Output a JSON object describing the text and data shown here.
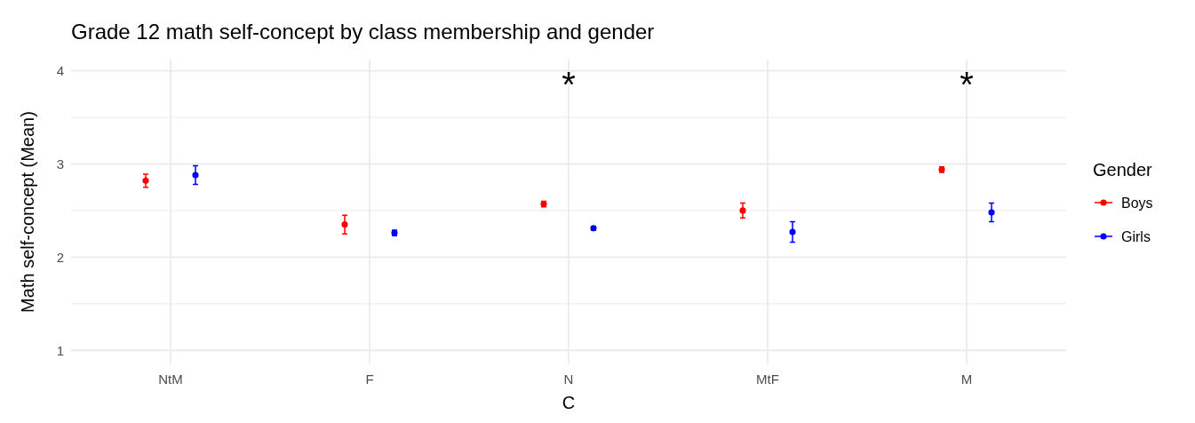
{
  "chart_data": {
    "type": "scatter",
    "title": "Grade 12 math self-concept by class membership and gender",
    "xlabel": "C",
    "ylabel": "Math self-concept (Mean)",
    "legend_title": "Gender",
    "categories": [
      "NtM",
      "F",
      "N",
      "MtF",
      "M"
    ],
    "series": [
      {
        "name": "Boys",
        "color": "#ff0000",
        "values": [
          2.82,
          2.35,
          2.57,
          2.5,
          2.94
        ],
        "errors": [
          0.07,
          0.1,
          0.03,
          0.08,
          0.03
        ]
      },
      {
        "name": "Girls",
        "color": "#0000ff",
        "values": [
          2.88,
          2.26,
          2.31,
          2.27,
          2.48
        ],
        "errors": [
          0.1,
          0.03,
          0.02,
          0.11,
          0.1
        ]
      }
    ],
    "ylim": [
      0.85,
      4.12
    ],
    "yticks": [
      1,
      {
        "value": 1.5,
        "label": null
      },
      2,
      {
        "value": 2.5,
        "label": null
      },
      3,
      {
        "value": 3.5,
        "label": null
      },
      4
    ],
    "grid": true,
    "legend": "right",
    "marker": "circle",
    "annotations": [
      "*",
      "*"
    ]
  }
}
